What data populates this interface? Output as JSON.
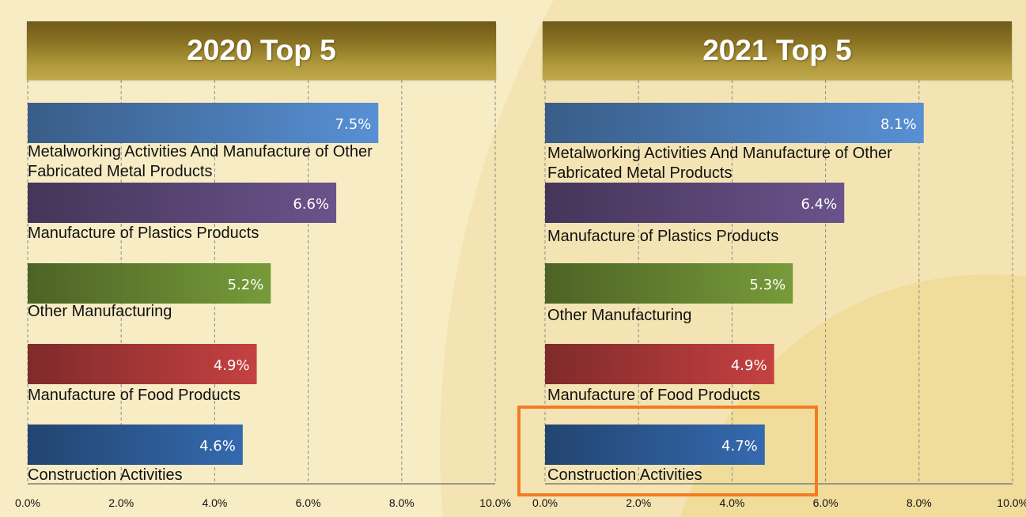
{
  "chart_data": [
    {
      "type": "bar",
      "orientation": "horizontal",
      "title": "2020 Top 5",
      "categories": [
        "Metalworking Activities And Manufacture of Other Fabricated Metal Products",
        "Manufacture of Plastics Products",
        "Other Manufacturing",
        "Manufacture of Food Products",
        "Construction Activities"
      ],
      "values": [
        7.5,
        6.6,
        5.2,
        4.9,
        4.6
      ],
      "value_labels": [
        "7.5%",
        "6.6%",
        "5.2%",
        "4.9%",
        "4.6%"
      ],
      "xlim": [
        0,
        10
      ],
      "xticks": [
        "0.0%",
        "2.0%",
        "4.0%",
        "6.0%",
        "8.0%",
        "10.0%"
      ],
      "grid": "vertical dashed",
      "bar_colors": [
        "#4f81bd",
        "#5f4a7c",
        "#6a8a34",
        "#b03a3a",
        "#2f5f9c"
      ]
    },
    {
      "type": "bar",
      "orientation": "horizontal",
      "title": "2021 Top 5",
      "categories": [
        "Metalworking Activities And Manufacture of Other Fabricated Metal Products",
        "Manufacture of Plastics Products",
        "Other Manufacturing",
        "Manufacture of Food Products",
        "Construction Activities"
      ],
      "values": [
        8.1,
        6.4,
        5.3,
        4.9,
        4.7
      ],
      "value_labels": [
        "8.1%",
        "6.4%",
        "5.3%",
        "4.9%",
        "4.7%"
      ],
      "xlim": [
        0,
        10
      ],
      "xticks": [
        "0.0%",
        "2.0%",
        "4.0%",
        "6.0%",
        "8.0%",
        "10.0%"
      ],
      "grid": "vertical dashed",
      "bar_colors": [
        "#4f81bd",
        "#5f4a7c",
        "#6a8a34",
        "#b03a3a",
        "#2f5f9c"
      ],
      "highlighted_category": "Construction Activities",
      "highlight_color": "#f47c20"
    }
  ]
}
